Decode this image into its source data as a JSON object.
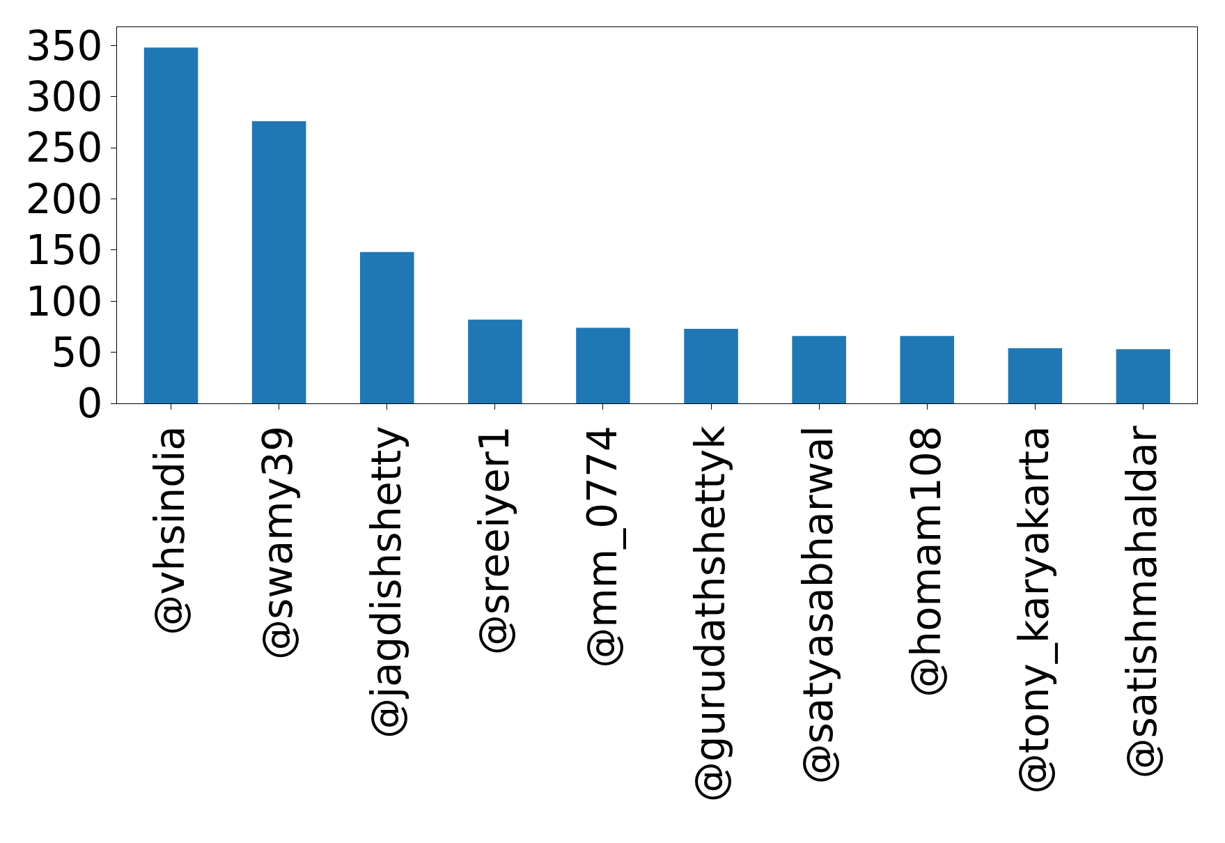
{
  "chart_data": {
    "type": "bar",
    "categories": [
      "@vhsindia",
      "@swamy39",
      "@jagdishshetty",
      "@sreeiyer1",
      "@mm_0774",
      "@gurudathshettyk",
      "@satyasabharwal",
      "@homam108",
      "@tony_karyakarta",
      "@satishmahaldar"
    ],
    "values": [
      348,
      276,
      148,
      82,
      74,
      73,
      66,
      66,
      54,
      53
    ],
    "color": "#1f77b4",
    "ylim": [
      0,
      368
    ],
    "yticks": [
      0,
      50,
      100,
      150,
      200,
      250,
      300,
      350
    ]
  }
}
